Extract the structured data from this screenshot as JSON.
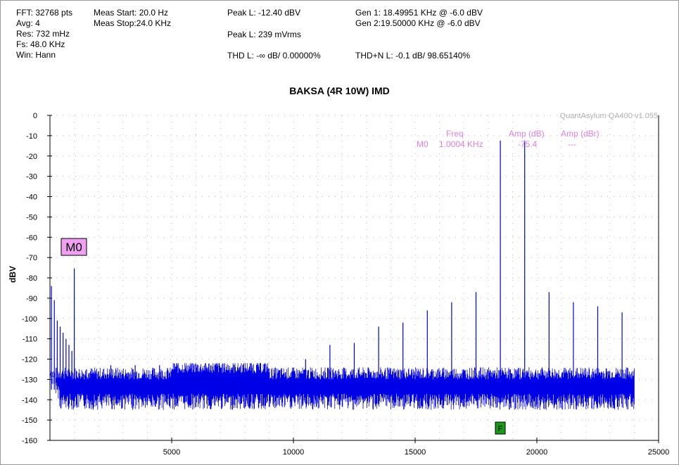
{
  "header": {
    "col1": [
      "FFT: 32768 pts",
      "Avg: 4",
      "Res: 732 mHz",
      "Fs: 48.0 KHz",
      "Win: Hann"
    ],
    "col2": [
      "Meas Start: 20.0 Hz",
      "Meas Stop:24.0 KHz"
    ],
    "peak_l_dbv": "Peak L: -12.40 dBV",
    "peak_l_mvrms": "Peak L: 239 mVrms",
    "thd_l": "THD L: -∞ dB/ 0.00000%",
    "gen1": "Gen 1: 18.49951 KHz @ -6.0  dBV",
    "gen2": "Gen 2:19.50000 KHz @ -6.0  dBV",
    "thdn_l": "THD+N L: -0.1 dB/ 98.65140%"
  },
  "watermark": "QuantAsylum QA400 v1.055",
  "marker_legend": {
    "headers": [
      "Freq",
      "Amp (dB)",
      "Amp (dBr)"
    ],
    "row": [
      "M0",
      "1.0004 KHz",
      "-75.4",
      "---"
    ]
  },
  "marker_label": "M0",
  "f_marker": "F",
  "colors": {
    "trace": "#0000e6",
    "marker_bg": "#f0a0f0",
    "legend": "#e080e0",
    "f_bg": "#1a9a1a"
  },
  "chart_data": {
    "type": "line",
    "title": "BAKSA (4R 10W) IMD",
    "xlabel": "",
    "ylabel": "dBV",
    "xlim": [
      0,
      25000
    ],
    "ylim": [
      -160,
      0
    ],
    "xticks": [
      5000,
      10000,
      15000,
      20000,
      25000
    ],
    "yticks": [
      0,
      -10,
      -20,
      -30,
      -40,
      -50,
      -60,
      -70,
      -80,
      -90,
      -100,
      -110,
      -120,
      -130,
      -140,
      -150,
      -160
    ],
    "grid": true,
    "noise_floor_dbv": -135,
    "series": [
      {
        "x": [
          60,
          180,
          300,
          420,
          540,
          660,
          780,
          900,
          1000,
          1500,
          2500,
          3500,
          4500,
          5500,
          6500,
          7500,
          8500,
          9500,
          10500,
          11500,
          12500,
          13500,
          14500,
          15500,
          16500,
          17500,
          18500,
          19500,
          20500,
          21500,
          22500,
          23500
        ],
        "values": [
          -84,
          -91,
          -101,
          -104,
          -107,
          -110,
          -113,
          -116,
          -75.4,
          -125,
          -123,
          -123,
          -123,
          -125,
          -125,
          -126,
          -128,
          -128,
          -120,
          -113,
          -112,
          -104,
          -102,
          -96,
          -92,
          -87,
          -12.4,
          -12.4,
          -87,
          -92,
          -94,
          -97
        ]
      }
    ]
  }
}
